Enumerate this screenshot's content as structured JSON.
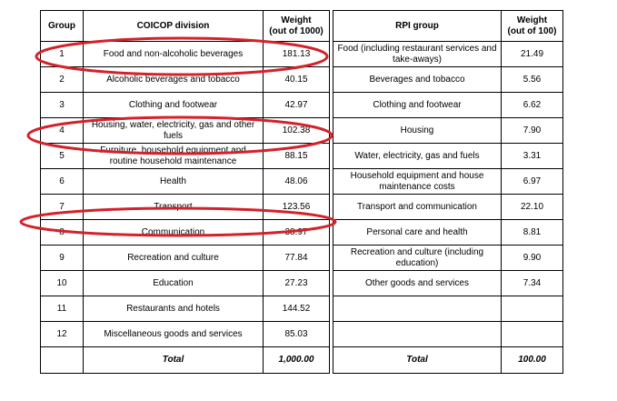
{
  "left_table": {
    "headers": [
      "Group",
      "COICOP division",
      "Weight\n(out of 1000)"
    ],
    "rows": [
      {
        "group": "1",
        "division": "Food and non-alcoholic beverages",
        "weight": "181.13"
      },
      {
        "group": "2",
        "division": "Alcoholic beverages and tobacco",
        "weight": "40.15"
      },
      {
        "group": "3",
        "division": "Clothing and footwear",
        "weight": "42.97"
      },
      {
        "group": "4",
        "division": "Housing, water, electricity, gas and other fuels",
        "weight": "102.38"
      },
      {
        "group": "5",
        "division": "Furniture, household equipment and routine household maintenance",
        "weight": "88.15"
      },
      {
        "group": "6",
        "division": "Health",
        "weight": "48.06"
      },
      {
        "group": "7",
        "division": "Transport",
        "weight": "123.56"
      },
      {
        "group": "8",
        "division": "Communication",
        "weight": "38.97"
      },
      {
        "group": "9",
        "division": "Recreation and culture",
        "weight": "77.84"
      },
      {
        "group": "10",
        "division": "Education",
        "weight": "27.23"
      },
      {
        "group": "11",
        "division": "Restaurants and hotels",
        "weight": "144.52"
      },
      {
        "group": "12",
        "division": "Miscellaneous goods and services",
        "weight": "85.03"
      }
    ],
    "total_label": "Total",
    "total_value": "1,000.00"
  },
  "right_table": {
    "headers": [
      "RPI group",
      "Weight\n(out of 100)"
    ],
    "rows": [
      {
        "group": "Food (including restaurant services and take-aways)",
        "weight": "21.49"
      },
      {
        "group": "Beverages and tobacco",
        "weight": "5.56"
      },
      {
        "group": "Clothing and footwear",
        "weight": "6.62"
      },
      {
        "group": "Housing",
        "weight": "7.90"
      },
      {
        "group": "Water, electricity, gas and fuels",
        "weight": "3.31"
      },
      {
        "group": "Household equipment and house maintenance costs",
        "weight": "6.97"
      },
      {
        "group": "Transport and communication",
        "weight": "22.10"
      },
      {
        "group": "Personal care and health",
        "weight": "8.81"
      },
      {
        "group": "Recreation and culture (including education)",
        "weight": "9.90"
      },
      {
        "group": "Other goods and services",
        "weight": "7.34"
      },
      {
        "group": "",
        "weight": ""
      },
      {
        "group": "",
        "weight": ""
      }
    ],
    "total_label": "Total",
    "total_value": "100.00"
  },
  "highlight_color": "#d3222a"
}
